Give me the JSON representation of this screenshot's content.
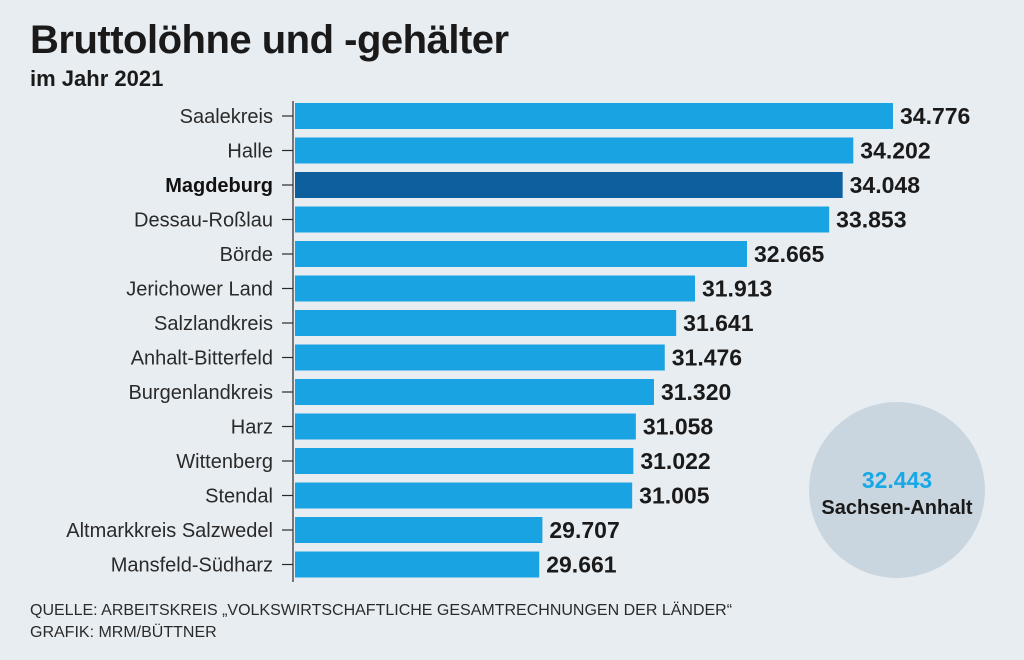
{
  "header": {
    "title": "Bruttolöhne und -gehälter",
    "subtitle": "im Jahr 2021"
  },
  "chart_data": {
    "type": "bar",
    "orientation": "horizontal",
    "categories": [
      "Saalekreis",
      "Halle",
      "Magdeburg",
      "Dessau-Roßlau",
      "Börde",
      "Jerichower Land",
      "Salzlandkreis",
      "Anhalt-Bitterfeld",
      "Burgenlandkreis",
      "Harz",
      "Wittenberg",
      "Stendal",
      "Altmarkkreis Salzwedel",
      "Mansfeld-Südharz"
    ],
    "values": [
      34776,
      34202,
      34048,
      33853,
      32665,
      31913,
      31641,
      31476,
      31320,
      31058,
      31022,
      31005,
      29707,
      29661
    ],
    "value_labels": [
      "34.776",
      "34.202",
      "34.048",
      "33.853",
      "32.665",
      "31.913",
      "31.641",
      "31.476",
      "31.320",
      "31.058",
      "31.022",
      "31.005",
      "29.707",
      "29.661"
    ],
    "highlight": "Magdeburg",
    "bar_color": "#1aa3e2",
    "highlight_color": "#0d5f9e",
    "grid": false,
    "xlabel": "",
    "ylabel": ""
  },
  "average": {
    "value": "32.443",
    "label": "Sachsen-Anhalt",
    "value_color": "#19a8e6",
    "circle_color": "#c9d6df"
  },
  "footer": {
    "source": "QUELLE: ARBEITSKREIS „VOLKSWIRTSCHAFTLICHE GESAMTRECHNUNGEN DER LÄNDER“",
    "credit": "GRAFIK: MRM/BÜTTNER"
  }
}
